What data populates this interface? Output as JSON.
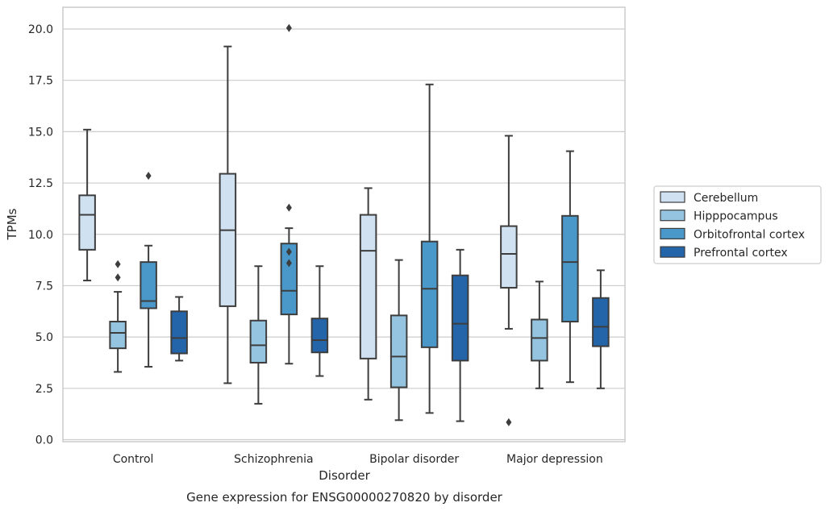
{
  "chart_data": {
    "type": "boxplot",
    "title": "Gene expression for ENSG00000270820 by disorder",
    "xlabel": "Disorder",
    "ylabel": "TPMs",
    "ylim": [
      -0.1,
      21.0
    ],
    "yticks": [
      0.0,
      2.5,
      5.0,
      7.5,
      10.0,
      12.5,
      15.0,
      17.5,
      20.0
    ],
    "ytick_labels": [
      "0.0",
      "2.5",
      "5.0",
      "7.5",
      "10.0",
      "12.5",
      "15.0",
      "17.5",
      "20.0"
    ],
    "grid": true,
    "legend_position": "right",
    "categories": [
      "Control",
      "Schizophrenia",
      "Bipolar disorder",
      "Major depression"
    ],
    "series": [
      {
        "name": "Cerebellum",
        "color": "#d0e1f2",
        "boxes": [
          {
            "whislo": 7.75,
            "q1": 9.25,
            "med": 10.95,
            "q3": 11.9,
            "whishi": 15.1,
            "fliers": []
          },
          {
            "whislo": 2.75,
            "q1": 6.5,
            "med": 10.2,
            "q3": 12.95,
            "whishi": 19.15,
            "fliers": []
          },
          {
            "whislo": 1.95,
            "q1": 3.95,
            "med": 9.2,
            "q3": 10.95,
            "whishi": 12.25,
            "fliers": []
          },
          {
            "whislo": 5.4,
            "q1": 7.4,
            "med": 9.05,
            "q3": 10.4,
            "whishi": 14.8,
            "fliers": [
              0.85
            ]
          }
        ]
      },
      {
        "name": "Hipppocampus",
        "color": "#94c4df",
        "boxes": [
          {
            "whislo": 3.3,
            "q1": 4.45,
            "med": 5.2,
            "q3": 5.75,
            "whishi": 7.2,
            "fliers": [
              7.9,
              8.55
            ]
          },
          {
            "whislo": 1.75,
            "q1": 3.75,
            "med": 4.6,
            "q3": 5.8,
            "whishi": 8.45,
            "fliers": []
          },
          {
            "whislo": 0.95,
            "q1": 2.55,
            "med": 4.05,
            "q3": 6.05,
            "whishi": 8.75,
            "fliers": []
          },
          {
            "whislo": 2.5,
            "q1": 3.85,
            "med": 4.95,
            "q3": 5.85,
            "whishi": 7.7,
            "fliers": []
          }
        ]
      },
      {
        "name": "Orbitofrontal cortex",
        "color": "#4a98c9",
        "boxes": [
          {
            "whislo": 3.55,
            "q1": 6.4,
            "med": 6.75,
            "q3": 8.65,
            "whishi": 9.45,
            "fliers": [
              12.85
            ]
          },
          {
            "whislo": 3.7,
            "q1": 6.1,
            "med": 7.25,
            "q3": 9.55,
            "whishi": 10.3,
            "fliers": [
              20.05,
              11.3,
              9.15,
              8.6
            ]
          },
          {
            "whislo": 1.3,
            "q1": 4.5,
            "med": 7.35,
            "q3": 9.65,
            "whishi": 17.3,
            "fliers": []
          },
          {
            "whislo": 2.8,
            "q1": 5.75,
            "med": 8.65,
            "q3": 10.9,
            "whishi": 14.05,
            "fliers": []
          }
        ]
      },
      {
        "name": "Prefrontal cortex",
        "color": "#2464a9",
        "boxes": [
          {
            "whislo": 3.85,
            "q1": 4.2,
            "med": 4.95,
            "q3": 6.25,
            "whishi": 6.95,
            "fliers": []
          },
          {
            "whislo": 3.1,
            "q1": 4.25,
            "med": 4.85,
            "q3": 5.9,
            "whishi": 8.45,
            "fliers": []
          },
          {
            "whislo": 0.9,
            "q1": 3.85,
            "med": 5.65,
            "q3": 8.0,
            "whishi": 9.25,
            "fliers": []
          },
          {
            "whislo": 2.5,
            "q1": 4.55,
            "med": 5.5,
            "q3": 6.9,
            "whishi": 8.25,
            "fliers": []
          }
        ]
      }
    ]
  }
}
